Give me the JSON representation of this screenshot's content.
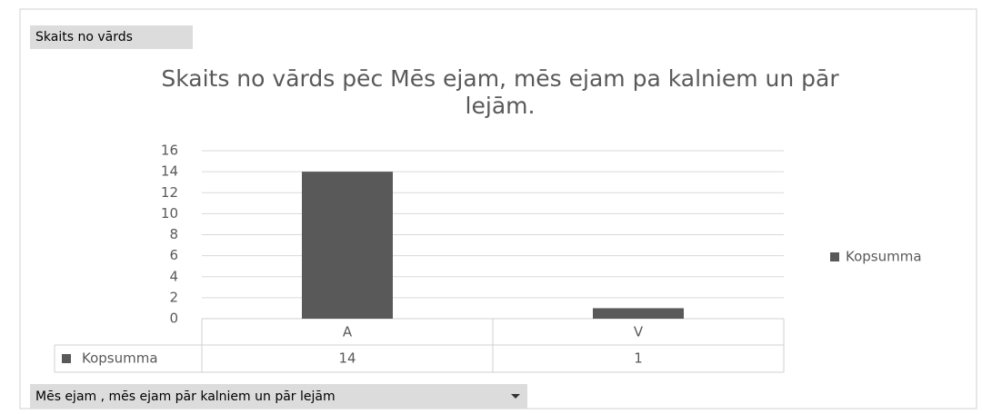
{
  "chart_data": {
    "type": "bar",
    "title": "Skaits no vārds  pēc Mēs ejam, mēs ejam pa kalniem un pār lejām.",
    "categories": [
      "A",
      "V"
    ],
    "series": [
      {
        "name": "Kopsumma",
        "color": "#595959",
        "values": [
          14,
          1
        ]
      }
    ],
    "ylim": [
      0,
      16
    ],
    "yticks": [
      0,
      2,
      4,
      6,
      8,
      10,
      12,
      14,
      16
    ],
    "grid": true,
    "legend": "right",
    "data_table": true
  },
  "pivot_buttons": {
    "value_field": "Skaits no vārds",
    "axis_field": "Mēs ejam , mēs ejam pār kalniem un pār lejām"
  }
}
